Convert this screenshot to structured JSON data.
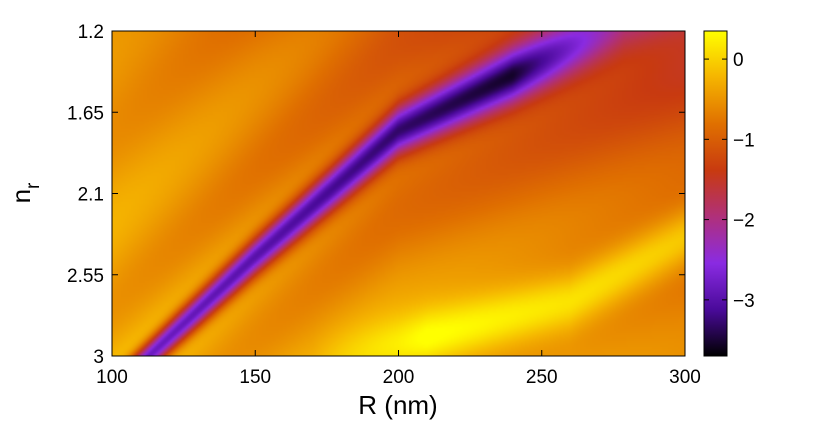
{
  "chart_data": {
    "type": "heatmap",
    "title": "",
    "xlabel": "R (nm)",
    "ylabel_main": "n",
    "ylabel_sub": "r",
    "x_ticks": [
      "100",
      "150",
      "200",
      "250",
      "300"
    ],
    "y_ticks": [
      "1.2",
      "1.65",
      "2.1",
      "2.55",
      "3"
    ],
    "xlim": [
      100,
      300
    ],
    "ylim": [
      1.2,
      3
    ],
    "y_direction": "reversed",
    "colorbar": {
      "range": [
        -3.7,
        0.35
      ],
      "ticks": [
        "0",
        "−1",
        "−2",
        "−3"
      ],
      "tick_values": [
        0,
        -1,
        -2,
        -3
      ],
      "colormap": [
        "#000000",
        "#4a0a9a",
        "#8a2be2",
        "#b0307a",
        "#c83a10",
        "#e07000",
        "#f5b400",
        "#ffff00"
      ]
    },
    "features": [
      {
        "kind": "minimum_band",
        "min_value": -3.7,
        "passes_through": [
          [
            113,
            3.0
          ],
          [
            150,
            2.45
          ],
          [
            200,
            1.75
          ],
          [
            265,
            1.25
          ]
        ]
      },
      {
        "kind": "maximum_band",
        "max_value": 0.3,
        "passes_through": [
          [
            200,
            2.95
          ],
          [
            260,
            2.7
          ],
          [
            300,
            2.35
          ]
        ]
      }
    ]
  }
}
